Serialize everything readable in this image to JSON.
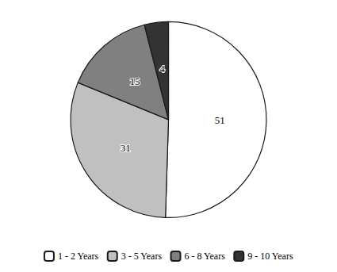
{
  "chart_data": {
    "type": "pie",
    "categories": [
      "1 - 2 Years",
      "3 - 5 Years",
      "6 - 8 Years",
      "9 - 10 Years"
    ],
    "values": [
      51,
      31,
      15,
      4
    ],
    "colors": [
      "#ffffff",
      "#c0c0c0",
      "#808080",
      "#333333"
    ],
    "data_labels": true,
    "legend": "bottom"
  }
}
